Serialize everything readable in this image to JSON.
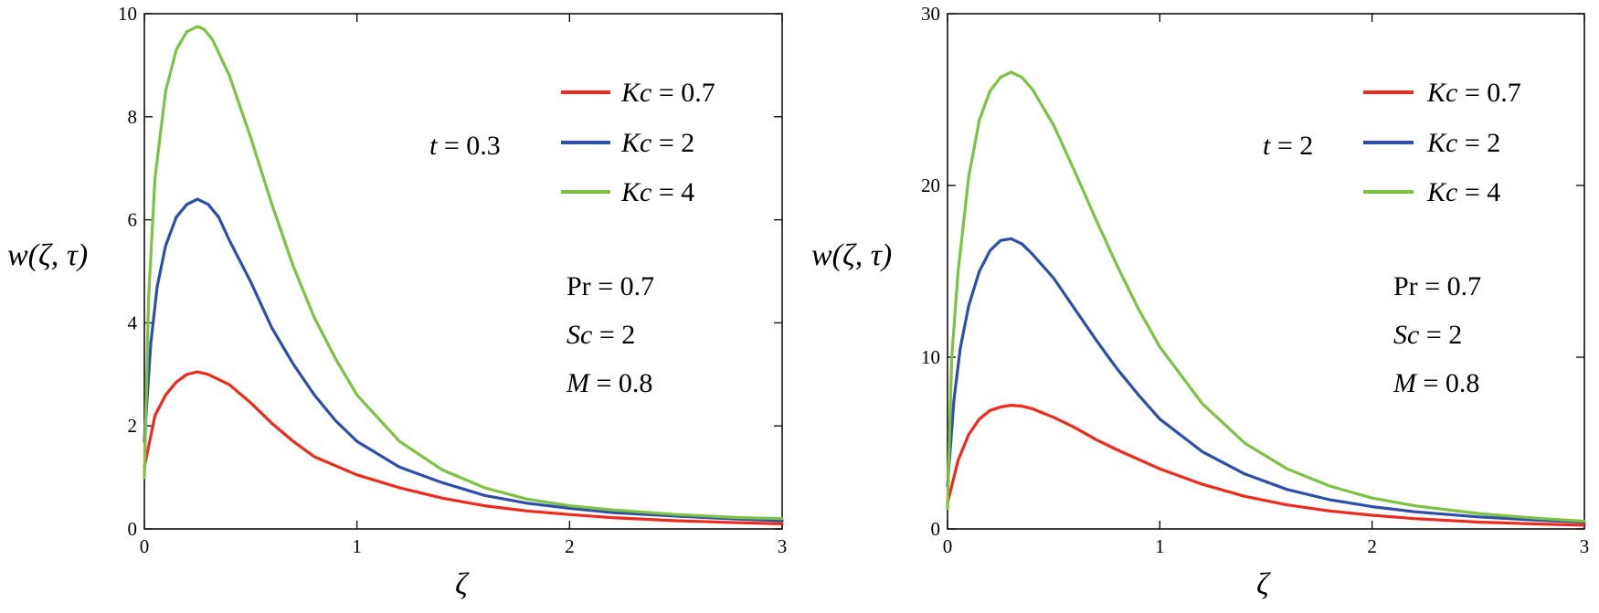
{
  "chart_data": [
    {
      "type": "line",
      "id": "left",
      "xlabel": "ζ",
      "ylabel": "w(ζ, τ)",
      "xlim": [
        0,
        3
      ],
      "ylim": [
        0,
        10
      ],
      "xticks": [
        0,
        1,
        2,
        3
      ],
      "yticks": [
        0,
        2,
        4,
        6,
        8,
        10
      ],
      "grid": false,
      "legend_position": "top-right",
      "time_annotation": {
        "var": "t",
        "value": "0.3"
      },
      "parameters": [
        {
          "var": "Pr",
          "italic": false,
          "value": "0.7"
        },
        {
          "var": "Sc",
          "italic": true,
          "value": "2"
        },
        {
          "var": "M",
          "italic": true,
          "value": "0.8"
        }
      ],
      "series": [
        {
          "name": "Kc = 0.7",
          "var": "Kc",
          "value": "0.7",
          "color": "#ee2a1d",
          "x": [
            0,
            0.05,
            0.1,
            0.15,
            0.2,
            0.25,
            0.3,
            0.4,
            0.5,
            0.6,
            0.7,
            0.8,
            1.0,
            1.2,
            1.4,
            1.6,
            1.8,
            2.0,
            2.2,
            2.5,
            2.8,
            3.0
          ],
          "y": [
            1.2,
            2.2,
            2.6,
            2.85,
            3.0,
            3.05,
            3.0,
            2.8,
            2.45,
            2.05,
            1.7,
            1.4,
            1.05,
            0.8,
            0.6,
            0.45,
            0.35,
            0.28,
            0.22,
            0.16,
            0.12,
            0.1
          ]
        },
        {
          "name": "Kc = 2",
          "var": "Kc",
          "value": "2",
          "color": "#2e4ea8",
          "x": [
            0,
            0.03,
            0.06,
            0.1,
            0.15,
            0.2,
            0.25,
            0.3,
            0.35,
            0.4,
            0.5,
            0.6,
            0.7,
            0.8,
            0.9,
            1.0,
            1.2,
            1.4,
            1.6,
            1.8,
            2.0,
            2.2,
            2.5,
            2.8,
            3.0
          ],
          "y": [
            1.7,
            3.6,
            4.7,
            5.5,
            6.05,
            6.3,
            6.4,
            6.3,
            6.05,
            5.6,
            4.8,
            3.9,
            3.2,
            2.6,
            2.1,
            1.7,
            1.2,
            0.9,
            0.65,
            0.5,
            0.4,
            0.32,
            0.25,
            0.19,
            0.16
          ]
        },
        {
          "name": "Kc = 4",
          "var": "Kc",
          "value": "4",
          "color": "#7dc242",
          "x": [
            0,
            0.02,
            0.05,
            0.1,
            0.15,
            0.2,
            0.25,
            0.28,
            0.32,
            0.4,
            0.5,
            0.6,
            0.7,
            0.8,
            0.9,
            1.0,
            1.2,
            1.4,
            1.6,
            1.8,
            2.0,
            2.2,
            2.5,
            2.8,
            3.0
          ],
          "y": [
            1.0,
            4.5,
            6.8,
            8.5,
            9.3,
            9.65,
            9.75,
            9.7,
            9.5,
            8.8,
            7.6,
            6.3,
            5.1,
            4.1,
            3.3,
            2.6,
            1.7,
            1.15,
            0.8,
            0.58,
            0.45,
            0.37,
            0.28,
            0.22,
            0.2
          ]
        }
      ]
    },
    {
      "type": "line",
      "id": "right",
      "xlabel": "ζ",
      "ylabel": "w(ζ, τ)",
      "xlim": [
        0,
        3
      ],
      "ylim": [
        0,
        30
      ],
      "xticks": [
        0,
        1,
        2,
        3
      ],
      "yticks": [
        0,
        10,
        20,
        30
      ],
      "grid": false,
      "legend_position": "top-right",
      "time_annotation": {
        "var": "t",
        "value": "2"
      },
      "parameters": [
        {
          "var": "Pr",
          "italic": false,
          "value": "0.7"
        },
        {
          "var": "Sc",
          "italic": true,
          "value": "2"
        },
        {
          "var": "M",
          "italic": true,
          "value": "0.8"
        }
      ],
      "series": [
        {
          "name": "Kc = 0.7",
          "var": "Kc",
          "value": "0.7",
          "color": "#ee2a1d",
          "x": [
            0,
            0.05,
            0.1,
            0.15,
            0.2,
            0.25,
            0.3,
            0.35,
            0.4,
            0.5,
            0.6,
            0.7,
            0.8,
            1.0,
            1.2,
            1.4,
            1.6,
            1.8,
            2.0,
            2.2,
            2.5,
            2.8,
            3.0
          ],
          "y": [
            1.5,
            4.0,
            5.5,
            6.4,
            6.9,
            7.1,
            7.2,
            7.15,
            7.0,
            6.5,
            5.9,
            5.2,
            4.6,
            3.5,
            2.6,
            1.9,
            1.4,
            1.05,
            0.8,
            0.6,
            0.4,
            0.28,
            0.22
          ]
        },
        {
          "name": "Kc = 2",
          "var": "Kc",
          "value": "2",
          "color": "#2e4ea8",
          "x": [
            0,
            0.03,
            0.06,
            0.1,
            0.15,
            0.2,
            0.25,
            0.3,
            0.35,
            0.4,
            0.5,
            0.6,
            0.7,
            0.8,
            0.9,
            1.0,
            1.2,
            1.4,
            1.6,
            1.8,
            2.0,
            2.2,
            2.5,
            2.8,
            3.0
          ],
          "y": [
            2.5,
            7.5,
            10.5,
            13.0,
            15.0,
            16.2,
            16.8,
            16.9,
            16.6,
            16.0,
            14.6,
            12.8,
            11.0,
            9.3,
            7.8,
            6.4,
            4.5,
            3.2,
            2.3,
            1.7,
            1.3,
            1.0,
            0.7,
            0.5,
            0.4
          ]
        },
        {
          "name": "Kc = 4",
          "var": "Kc",
          "value": "4",
          "color": "#7dc242",
          "x": [
            0,
            0.02,
            0.05,
            0.1,
            0.15,
            0.2,
            0.25,
            0.3,
            0.35,
            0.4,
            0.5,
            0.6,
            0.7,
            0.8,
            0.9,
            1.0,
            1.2,
            1.4,
            1.6,
            1.8,
            2.0,
            2.2,
            2.5,
            2.8,
            3.0
          ],
          "y": [
            1.2,
            10.0,
            15.0,
            20.5,
            23.8,
            25.5,
            26.3,
            26.6,
            26.3,
            25.6,
            23.5,
            20.8,
            18.0,
            15.3,
            12.8,
            10.6,
            7.3,
            5.0,
            3.5,
            2.5,
            1.8,
            1.35,
            0.9,
            0.6,
            0.45
          ]
        }
      ]
    }
  ]
}
